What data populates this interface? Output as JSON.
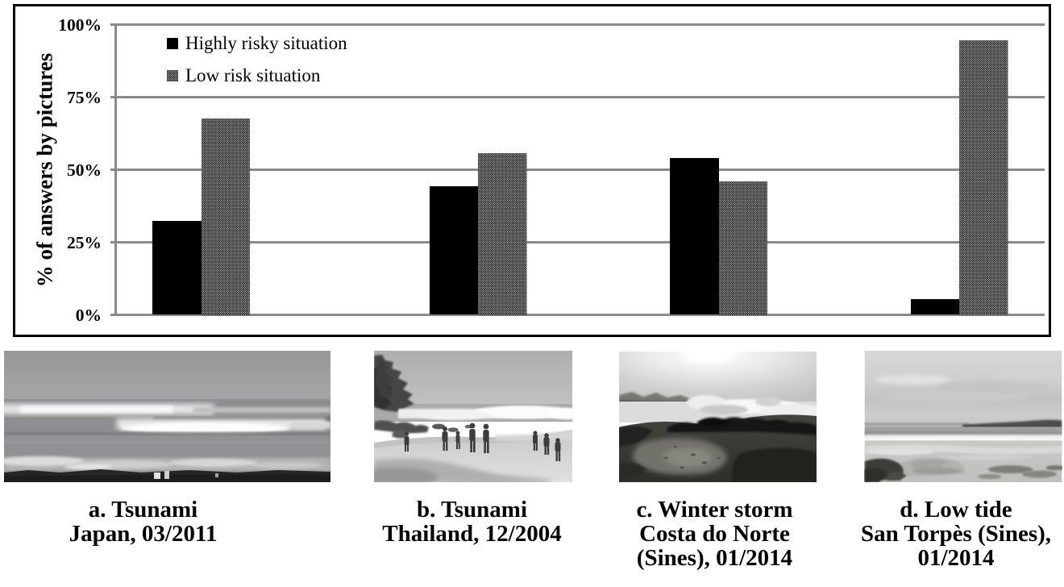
{
  "chart_data": {
    "type": "bar",
    "title": "",
    "ylabel": "% of answers by pictures",
    "xlabel": "",
    "ylim": [
      0,
      100
    ],
    "yticks": [
      0,
      25,
      50,
      75,
      100
    ],
    "ytick_labels": [
      "0%",
      "25%",
      "50%",
      "75%",
      "100%"
    ],
    "grid": true,
    "legend_position": "top-left inside plot",
    "categories": [
      "a. Tsunami Japan, 03/2011",
      "b. Tsunami Thailand, 12/2004",
      "c. Winter storm Costa do Norte (Sines), 01/2014",
      "d. Low tide San Torpès (Sines), 01/2014"
    ],
    "series": [
      {
        "name": "Highly risky situation",
        "style": "solid-black",
        "values": [
          32.3,
          44.3,
          54.1,
          5.4
        ]
      },
      {
        "name": "Low risk situation",
        "style": "black-crosshatch-on-white",
        "values": [
          67.7,
          55.7,
          45.9,
          94.5
        ]
      }
    ],
    "colors": {
      "bar_fill": "#000000",
      "hatch_line": "#000000",
      "hatch_background": "#ffffff",
      "gridline": "#8a8a8a",
      "axis_line": "#8a8a8a",
      "frame_border": "#000000",
      "text": "#000000",
      "background": "#ffffff"
    }
  },
  "photos": [
    {
      "id": "a",
      "subject": "tsunami wave approaching coast, Japan",
      "caption_lines": [
        "a. Tsunami",
        "Japan, 03/2011"
      ]
    },
    {
      "id": "b",
      "subject": "people on beach before tsunami, Thailand",
      "caption_lines": [
        "b. Tsunami",
        "Thailand, 12/2004"
      ]
    },
    {
      "id": "c",
      "subject": "winter storm waves on rocky coast",
      "caption_lines": [
        "c. Winter storm",
        "Costa do Norte",
        "(Sines), 01/2014"
      ]
    },
    {
      "id": "d",
      "subject": "calm low tide beach",
      "caption_lines": [
        "d. Low tide",
        "San Torpès (Sines),",
        "01/2014"
      ]
    }
  ]
}
